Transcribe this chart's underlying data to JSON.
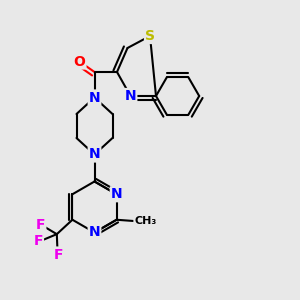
{
  "bg_color": "#e8e8e8",
  "bond_color": "#000000",
  "atom_colors": {
    "N": "#0000ff",
    "O": "#ff0000",
    "S": "#bbbb00",
    "F": "#ee00ee",
    "C": "#000000"
  },
  "bond_width": 1.5,
  "font_size_atom": 10
}
